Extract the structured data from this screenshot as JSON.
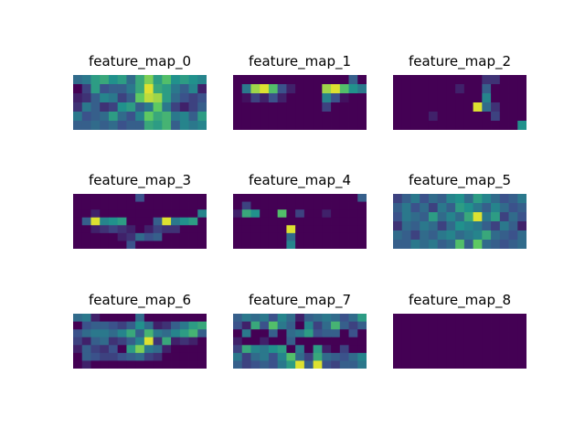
{
  "chart_data": {
    "type": "heatmap",
    "colormap": "viridis",
    "value_range": [
      0,
      1
    ],
    "panels": [
      {
        "title": "feature_map_0",
        "values": [
          [
            0.35,
            0.4,
            0.55,
            0.6,
            0.5,
            0.55,
            0.35,
            0.6,
            0.8,
            0.55,
            0.7,
            0.5,
            0.55,
            0.5,
            0.45
          ],
          [
            0.0,
            0.2,
            0.55,
            0.25,
            0.3,
            0.3,
            0.4,
            0.6,
            0.95,
            0.6,
            0.55,
            0.4,
            0.3,
            0.45,
            0.1
          ],
          [
            0.1,
            0.15,
            0.3,
            0.45,
            0.4,
            0.2,
            0.3,
            0.75,
            0.9,
            0.85,
            0.55,
            0.35,
            0.25,
            0.2,
            0.25
          ],
          [
            0.15,
            0.4,
            0.3,
            0.15,
            0.2,
            0.5,
            0.55,
            0.3,
            0.4,
            0.75,
            0.4,
            0.2,
            0.1,
            0.2,
            0.3
          ],
          [
            0.4,
            0.25,
            0.3,
            0.35,
            0.55,
            0.35,
            0.25,
            0.45,
            0.75,
            0.6,
            0.65,
            0.4,
            0.45,
            0.3,
            0.55
          ],
          [
            0.3,
            0.3,
            0.35,
            0.3,
            0.35,
            0.25,
            0.3,
            0.3,
            0.6,
            0.55,
            0.65,
            0.3,
            0.45,
            0.4,
            0.45
          ]
        ]
      },
      {
        "title": "feature_map_1",
        "values": [
          [
            0.0,
            0.0,
            0.0,
            0.0,
            0.0,
            0.0,
            0.0,
            0.0,
            0.0,
            0.0,
            0.0,
            0.0,
            0.0,
            0.3,
            0.0
          ],
          [
            0.0,
            0.4,
            0.85,
            0.95,
            0.7,
            0.25,
            0.1,
            0.0,
            0.0,
            0.0,
            0.85,
            0.95,
            0.7,
            0.5,
            0.4
          ],
          [
            0.0,
            0.05,
            0.2,
            0.1,
            0.25,
            0.1,
            0.0,
            0.0,
            0.0,
            0.0,
            0.45,
            0.25,
            0.05,
            0.0,
            0.0
          ],
          [
            0.0,
            0.0,
            0.0,
            0.0,
            0.0,
            0.0,
            0.0,
            0.0,
            0.0,
            0.0,
            0.2,
            0.0,
            0.0,
            0.0,
            0.0
          ],
          [
            0.0,
            0.0,
            0.0,
            0.0,
            0.0,
            0.0,
            0.0,
            0.0,
            0.0,
            0.0,
            0.0,
            0.0,
            0.0,
            0.0,
            0.0
          ],
          [
            0.0,
            0.0,
            0.0,
            0.0,
            0.0,
            0.0,
            0.0,
            0.0,
            0.0,
            0.0,
            0.0,
            0.0,
            0.0,
            0.0,
            0.0
          ]
        ]
      },
      {
        "title": "feature_map_2",
        "values": [
          [
            0.0,
            0.0,
            0.0,
            0.0,
            0.0,
            0.0,
            0.0,
            0.0,
            0.0,
            0.0,
            0.15,
            0.15,
            0.0,
            0.0,
            0.0
          ],
          [
            0.0,
            0.0,
            0.0,
            0.0,
            0.0,
            0.0,
            0.0,
            0.1,
            0.0,
            0.0,
            0.3,
            0.0,
            0.0,
            0.0,
            0.0
          ],
          [
            0.0,
            0.0,
            0.0,
            0.0,
            0.0,
            0.0,
            0.0,
            0.0,
            0.0,
            0.0,
            0.45,
            0.0,
            0.0,
            0.0,
            0.0
          ],
          [
            0.0,
            0.0,
            0.0,
            0.0,
            0.0,
            0.0,
            0.0,
            0.0,
            0.0,
            0.95,
            0.35,
            0.15,
            0.0,
            0.0,
            0.0
          ],
          [
            0.0,
            0.0,
            0.0,
            0.0,
            0.1,
            0.0,
            0.0,
            0.0,
            0.0,
            0.0,
            0.0,
            0.2,
            0.0,
            0.0,
            0.0
          ],
          [
            0.0,
            0.0,
            0.0,
            0.0,
            0.0,
            0.0,
            0.0,
            0.0,
            0.0,
            0.0,
            0.0,
            0.0,
            0.0,
            0.0,
            0.5
          ]
        ]
      },
      {
        "title": "feature_map_3",
        "values": [
          [
            0.0,
            0.0,
            0.0,
            0.0,
            0.0,
            0.0,
            0.0,
            0.25,
            0.0,
            0.0,
            0.0,
            0.0,
            0.0,
            0.0,
            0.0
          ],
          [
            0.0,
            0.0,
            0.0,
            0.0,
            0.0,
            0.0,
            0.0,
            0.0,
            0.0,
            0.0,
            0.0,
            0.0,
            0.0,
            0.0,
            0.0
          ],
          [
            0.0,
            0.0,
            0.1,
            0.0,
            0.0,
            0.0,
            0.0,
            0.0,
            0.0,
            0.0,
            0.0,
            0.0,
            0.0,
            0.0,
            0.45
          ],
          [
            0.0,
            0.3,
            0.95,
            0.45,
            0.5,
            0.55,
            0.0,
            0.0,
            0.0,
            0.3,
            0.95,
            0.4,
            0.5,
            0.55,
            0.0
          ],
          [
            0.0,
            0.0,
            0.1,
            0.15,
            0.2,
            0.15,
            0.1,
            0.0,
            0.1,
            0.2,
            0.15,
            0.15,
            0.0,
            0.0,
            0.0
          ],
          [
            0.0,
            0.0,
            0.0,
            0.0,
            0.0,
            0.1,
            0.15,
            0.35,
            0.25,
            0.3,
            0.0,
            0.0,
            0.0,
            0.0,
            0.0
          ],
          [
            0.0,
            0.0,
            0.0,
            0.0,
            0.0,
            0.0,
            0.25,
            0.0,
            0.0,
            0.0,
            0.0,
            0.0,
            0.0,
            0.0,
            0.0
          ]
        ]
      },
      {
        "title": "feature_map_4",
        "values": [
          [
            0.0,
            0.0,
            0.0,
            0.0,
            0.0,
            0.0,
            0.0,
            0.0,
            0.0,
            0.0,
            0.0,
            0.0,
            0.0,
            0.0,
            0.3
          ],
          [
            0.0,
            0.2,
            0.0,
            0.0,
            0.0,
            0.0,
            0.0,
            0.0,
            0.0,
            0.0,
            0.0,
            0.0,
            0.0,
            0.0,
            0.0
          ],
          [
            0.1,
            0.6,
            0.5,
            0.0,
            0.0,
            0.7,
            0.0,
            0.2,
            0.0,
            0.0,
            0.1,
            0.0,
            0.0,
            0.0,
            0.0
          ],
          [
            0.0,
            0.0,
            0.0,
            0.0,
            0.0,
            0.0,
            0.0,
            0.0,
            0.0,
            0.0,
            0.0,
            0.0,
            0.0,
            0.0,
            0.0
          ],
          [
            0.0,
            0.0,
            0.0,
            0.0,
            0.0,
            0.0,
            0.95,
            0.0,
            0.0,
            0.0,
            0.0,
            0.0,
            0.0,
            0.0,
            0.0
          ],
          [
            0.0,
            0.0,
            0.0,
            0.0,
            0.0,
            0.0,
            0.35,
            0.0,
            0.0,
            0.0,
            0.0,
            0.0,
            0.0,
            0.0,
            0.0
          ],
          [
            0.0,
            0.0,
            0.0,
            0.0,
            0.0,
            0.0,
            0.45,
            0.0,
            0.0,
            0.0,
            0.0,
            0.0,
            0.0,
            0.0,
            0.0
          ]
        ]
      },
      {
        "title": "feature_map_5",
        "values": [
          [
            0.2,
            0.3,
            0.4,
            0.25,
            0.35,
            0.3,
            0.45,
            0.5,
            0.35,
            0.55,
            0.45,
            0.35,
            0.25,
            0.3,
            0.4
          ],
          [
            0.3,
            0.4,
            0.25,
            0.35,
            0.2,
            0.4,
            0.3,
            0.55,
            0.5,
            0.4,
            0.3,
            0.45,
            0.35,
            0.25,
            0.3
          ],
          [
            0.25,
            0.4,
            0.35,
            0.3,
            0.55,
            0.35,
            0.45,
            0.35,
            0.6,
            0.95,
            0.4,
            0.55,
            0.2,
            0.35,
            0.25
          ],
          [
            0.15,
            0.35,
            0.3,
            0.4,
            0.35,
            0.2,
            0.35,
            0.5,
            0.45,
            0.4,
            0.3,
            0.2,
            0.4,
            0.3,
            0.1
          ],
          [
            0.35,
            0.3,
            0.2,
            0.35,
            0.3,
            0.4,
            0.45,
            0.35,
            0.4,
            0.45,
            0.6,
            0.35,
            0.3,
            0.25,
            0.35
          ],
          [
            0.3,
            0.3,
            0.4,
            0.35,
            0.4,
            0.3,
            0.35,
            0.7,
            0.3,
            0.75,
            0.35,
            0.3,
            0.25,
            0.3,
            0.35
          ]
        ]
      },
      {
        "title": "feature_map_6",
        "values": [
          [
            0.35,
            0.4,
            0.1,
            0.0,
            0.0,
            0.0,
            0.0,
            0.35,
            0.0,
            0.0,
            0.0,
            0.0,
            0.0,
            0.0,
            0.0
          ],
          [
            0.0,
            0.25,
            0.3,
            0.3,
            0.25,
            0.2,
            0.3,
            0.5,
            0.35,
            0.1,
            0.15,
            0.3,
            0.4,
            0.55,
            0.6
          ],
          [
            0.25,
            0.35,
            0.4,
            0.4,
            0.35,
            0.45,
            0.6,
            0.3,
            0.65,
            0.4,
            0.35,
            0.45,
            0.55,
            0.65,
            0.3
          ],
          [
            0.2,
            0.1,
            0.3,
            0.35,
            0.15,
            0.2,
            0.3,
            0.45,
            0.95,
            0.15,
            0.6,
            0.1,
            0.15,
            0.1,
            0.0
          ],
          [
            0.1,
            0.3,
            0.2,
            0.15,
            0.25,
            0.0,
            0.55,
            0.8,
            0.4,
            0.35,
            0.1,
            0.0,
            0.0,
            0.0,
            0.0
          ],
          [
            0.0,
            0.3,
            0.25,
            0.2,
            0.2,
            0.25,
            0.3,
            0.35,
            0.2,
            0.15,
            0.0,
            0.0,
            0.0,
            0.0,
            0.0
          ],
          [
            0.0,
            0.1,
            0.0,
            0.0,
            0.0,
            0.0,
            0.0,
            0.0,
            0.0,
            0.0,
            0.0,
            0.0,
            0.0,
            0.0,
            0.0
          ]
        ]
      },
      {
        "title": "feature_map_7",
        "values": [
          [
            0.3,
            0.4,
            0.35,
            0.4,
            0.25,
            0.45,
            0.35,
            0.1,
            0.3,
            0.35,
            0.4,
            0.35,
            0.25,
            0.35,
            0.55
          ],
          [
            0.25,
            0.1,
            0.6,
            0.25,
            0.7,
            0.4,
            0.3,
            0.0,
            0.45,
            0.2,
            0.35,
            0.65,
            0.3,
            0.2,
            0.3
          ],
          [
            0.0,
            0.4,
            0.0,
            0.0,
            0.3,
            0.0,
            0.35,
            0.4,
            0.55,
            0.25,
            0.3,
            0.3,
            0.0,
            0.25,
            0.0
          ],
          [
            0.1,
            0.0,
            0.0,
            0.1,
            0.0,
            0.0,
            0.3,
            0.0,
            0.0,
            0.0,
            0.0,
            0.0,
            0.0,
            0.0,
            0.0
          ],
          [
            0.2,
            0.6,
            0.45,
            0.4,
            0.5,
            0.55,
            0.0,
            0.4,
            0.0,
            0.55,
            0.1,
            0.0,
            0.2,
            0.0,
            0.0
          ],
          [
            0.4,
            0.2,
            0.35,
            0.4,
            0.25,
            0.45,
            0.7,
            0.35,
            0.2,
            0.6,
            0.35,
            0.3,
            0.25,
            0.35,
            0.45
          ],
          [
            0.3,
            0.2,
            0.25,
            0.3,
            0.25,
            0.4,
            0.55,
            0.95,
            0.3,
            0.95,
            0.25,
            0.2,
            0.3,
            0.3,
            0.4
          ]
        ]
      },
      {
        "title": "feature_map_8",
        "values": [
          [
            0,
            0,
            0,
            0,
            0,
            0,
            0,
            0,
            0,
            0,
            0,
            0,
            0,
            0,
            0
          ],
          [
            0,
            0,
            0,
            0,
            0,
            0,
            0,
            0,
            0,
            0,
            0,
            0,
            0,
            0,
            0
          ],
          [
            0,
            0,
            0,
            0,
            0,
            0,
            0,
            0,
            0,
            0,
            0,
            0,
            0,
            0,
            0
          ],
          [
            0,
            0,
            0,
            0,
            0,
            0,
            0,
            0,
            0,
            0,
            0,
            0,
            0,
            0,
            0
          ],
          [
            0,
            0,
            0,
            0,
            0,
            0,
            0,
            0,
            0,
            0,
            0,
            0,
            0,
            0,
            0
          ],
          [
            0,
            0,
            0,
            0,
            0,
            0,
            0,
            0,
            0,
            0,
            0,
            0,
            0,
            0,
            0
          ]
        ]
      }
    ]
  }
}
